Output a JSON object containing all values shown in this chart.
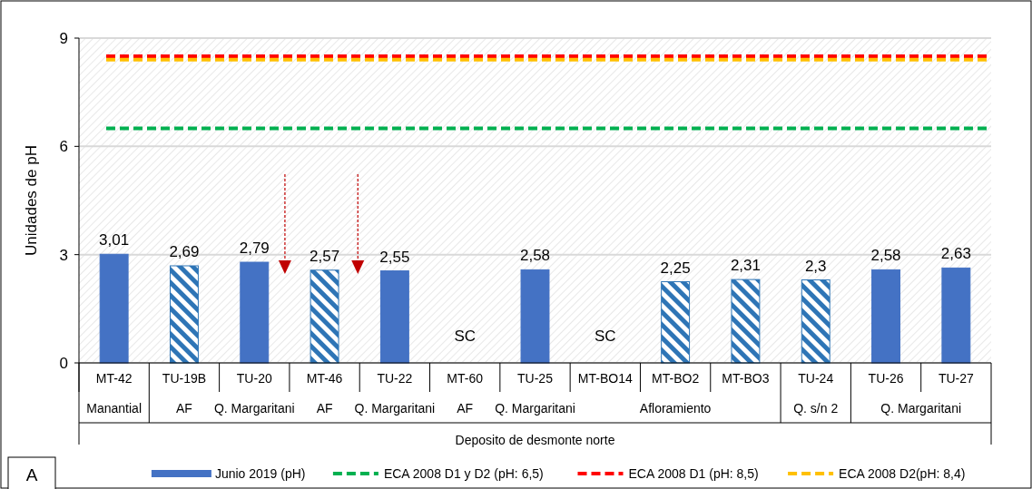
{
  "chart_data": {
    "type": "bar",
    "ylabel": "Unidades de pH",
    "categories": [
      "MT-42",
      "TU-19B",
      "TU-20",
      "MT-46",
      "TU-22",
      "MT-60",
      "TU-25",
      "MT-BO14",
      "MT-BO2",
      "MT-BO3",
      "TU-24",
      "TU-26",
      "TU-27"
    ],
    "series": [
      {
        "name": "Junio 2019 (pH)",
        "color": "#4472c4",
        "values": [
          3.01,
          2.69,
          2.79,
          2.57,
          2.55,
          null,
          2.58,
          null,
          2.25,
          2.31,
          2.3,
          2.58,
          2.63
        ],
        "colors": [
          "#4472c4",
          "#2e75b6",
          "#4472c4",
          "#2e75b6",
          "#4472c4",
          "#4472c4",
          "#4472c4",
          "#4472c4",
          "#2e75b6",
          "#2e75b6",
          "#2e75b6",
          "#4472c4",
          "#4472c4"
        ],
        "value_labels": [
          "3,01",
          "2,69",
          "2,79",
          "2,57",
          "2,55",
          null,
          "2,58",
          null,
          "2,25",
          "2,31",
          "2,3",
          "2,58",
          "2,63"
        ]
      }
    ],
    "ylim": [
      0,
      9
    ],
    "yticks": [
      0,
      3,
      6,
      9
    ],
    "grid": "y",
    "legend": "bottom",
    "ref_lines": [
      {
        "axis": "y",
        "value": 6.5,
        "label": "ECA 2008 D1 y D2 (pH: 6,5)",
        "color": "#00b050",
        "line_style": "dashed"
      },
      {
        "axis": "y",
        "value": 8.5,
        "label": "ECA 2008 D1 (pH: 8,5)",
        "color": "#ff0000",
        "line_style": "dashed"
      },
      {
        "axis": "y",
        "value": 8.4,
        "label": "ECA 2008 D2(pH: 8,4)",
        "color": "#ffc000",
        "line_style": "dashed"
      }
    ],
    "annotations": [
      "Deposito de desmonte norte",
      "A",
      "SC",
      "SC",
      "Manantial",
      "AF",
      "Q. Margaritani",
      "AF",
      "Q. Margaritani",
      "AF",
      "Q. Margaritani",
      "Afloramiento",
      "Q. s/n 2",
      "Q. Margaritani"
    ]
  }
}
